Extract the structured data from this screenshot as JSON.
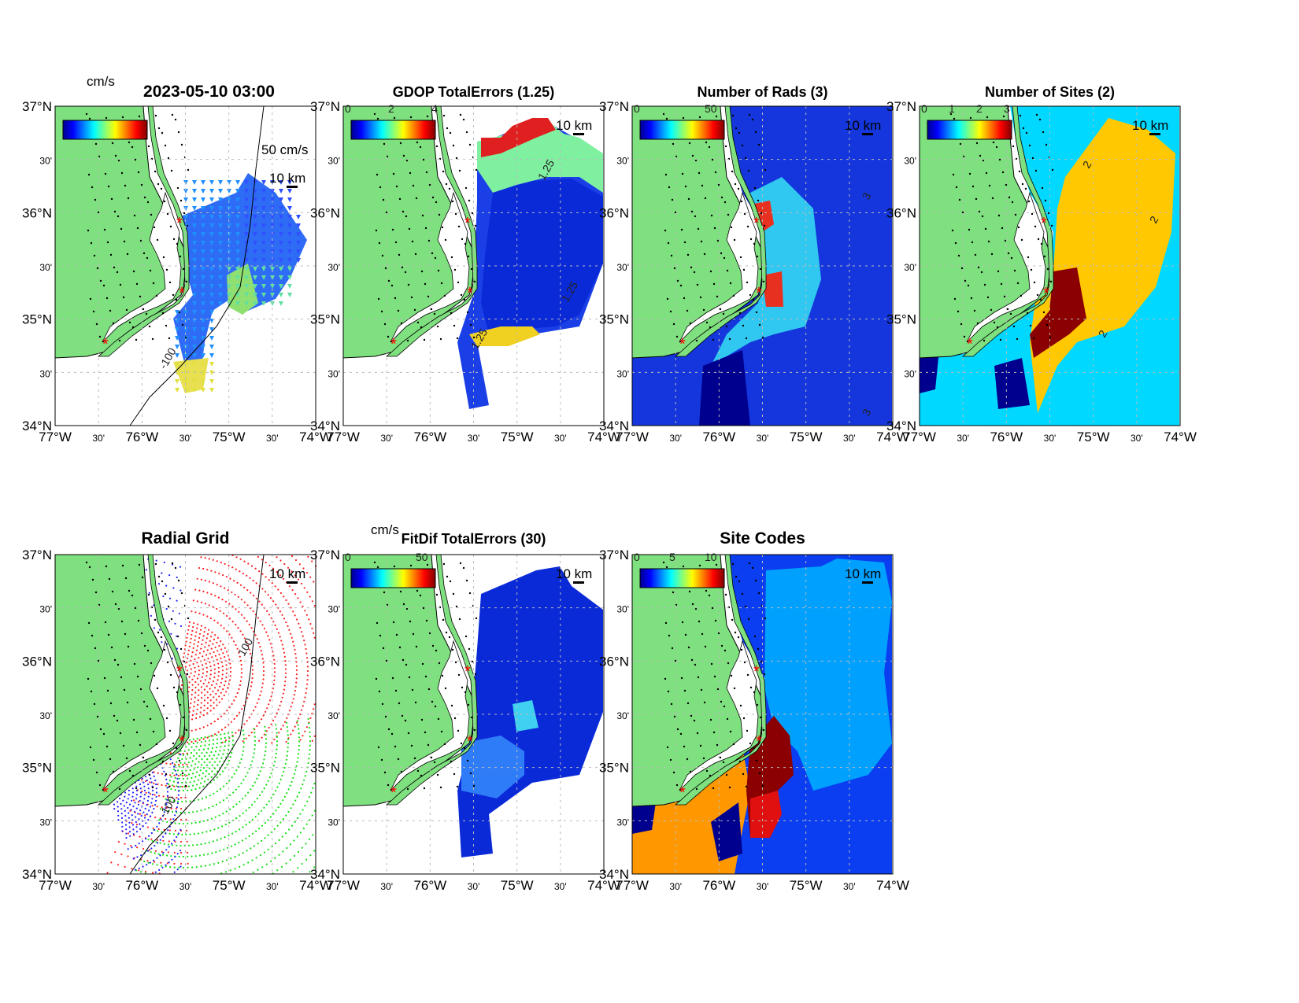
{
  "figure": {
    "lat_ticks": [
      "37°N",
      "30'",
      "36°N",
      "30'",
      "35°N",
      "30'",
      "34°N"
    ],
    "lon_ticks": [
      "77°W",
      "30'",
      "76°W",
      "30'",
      "75°W",
      "30'",
      "74°W"
    ],
    "lon_range": [
      -77,
      -74
    ],
    "lat_range": [
      34,
      37
    ],
    "land_color": "#7ee07e",
    "site_marker_color": "#ff0000",
    "colormap": "jet"
  },
  "chart_data": [
    {
      "type": "map-vectors",
      "title": "2023-05-10 03:00",
      "colorbar_label": "cm/s",
      "colorbar_ticks": [],
      "vector_scale_label": "50 cm/s",
      "scale_bar_label": "10 km",
      "contour_labels": [
        "-100"
      ]
    },
    {
      "type": "heatmap",
      "title": "GDOP TotalErrors (1.25)",
      "colorbar_label": "",
      "colorbar_ticks": [
        "0",
        "2",
        "4"
      ],
      "scale_bar_label": "10 km",
      "contour_labels": [
        "1.25",
        "1.25",
        "1.25"
      ]
    },
    {
      "type": "heatmap",
      "title": "Number of Rads (3)",
      "colorbar_label": "",
      "colorbar_ticks": [
        "0",
        "50"
      ],
      "scale_bar_label": "10 km",
      "contour_labels": [
        "3",
        "3"
      ]
    },
    {
      "type": "heatmap",
      "title": "Number of Sites (2)",
      "colorbar_label": "",
      "colorbar_ticks": [
        "0",
        "1",
        "2",
        "3"
      ],
      "scale_bar_label": "10 km",
      "contour_labels": [
        "2",
        "2",
        "2"
      ]
    },
    {
      "type": "scatter",
      "title": "Radial Grid",
      "colorbar_label": "",
      "colorbar_ticks": [],
      "scale_bar_label": "10 km",
      "contour_labels": [
        "-100",
        "100"
      ]
    },
    {
      "type": "heatmap",
      "title": "FitDif TotalErrors (30)",
      "colorbar_label": "cm/s",
      "colorbar_ticks": [
        "0",
        "50"
      ],
      "scale_bar_label": "10 km",
      "contour_labels": []
    },
    {
      "type": "heatmap",
      "title": "Site Codes",
      "colorbar_label": "",
      "colorbar_ticks": [
        "0",
        "5",
        "10"
      ],
      "scale_bar_label": "10 km",
      "contour_labels": []
    }
  ]
}
